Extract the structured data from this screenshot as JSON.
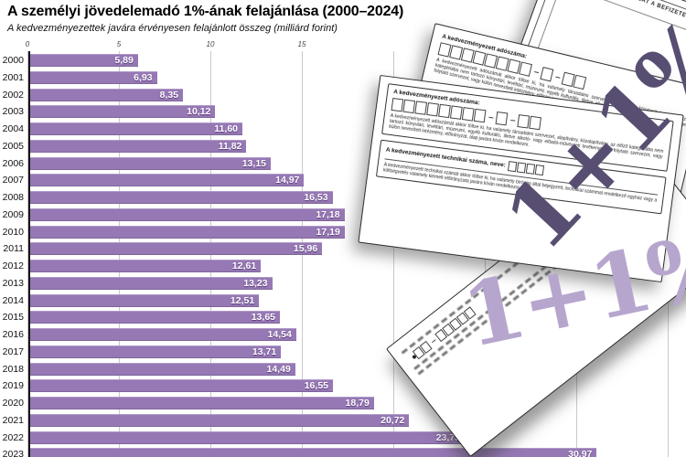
{
  "chart_data": {
    "type": "bar",
    "orientation": "horizontal",
    "title": "A személyi jövedelemadó 1%-ának felajánlása (2000–2024)",
    "subtitle": "A kedvezményezettek javára érvényesen felajánlott összeg (milliárd forint)",
    "unit": "milliárd forint",
    "categories": [
      "2000",
      "2001",
      "2002",
      "2003",
      "2004",
      "2005",
      "2006",
      "2007",
      "2008",
      "2009",
      "2010",
      "2011",
      "2012",
      "2013",
      "2014",
      "2015",
      "2016",
      "2017",
      "2018",
      "2019",
      "2020",
      "2021",
      "2022",
      "2023"
    ],
    "values": [
      5.89,
      6.93,
      8.35,
      10.12,
      11.6,
      11.82,
      13.15,
      14.97,
      16.53,
      17.18,
      17.19,
      15.96,
      12.61,
      13.23,
      12.51,
      13.65,
      14.54,
      13.71,
      14.49,
      16.55,
      18.79,
      20.72,
      23.75,
      30.97
    ],
    "value_labels": [
      "5,89",
      "6,93",
      "8,35",
      "10,12",
      "11,60",
      "11,82",
      "13,15",
      "14,97",
      "16,53",
      "17,18",
      "17,19",
      "15,96",
      "12,61",
      "13,23",
      "12,51",
      "13,65",
      "14,54",
      "13,71",
      "14,49",
      "16,55",
      "18,79",
      "20,72",
      "23,75",
      "30,97"
    ],
    "x_ticks": [
      0,
      5,
      10,
      15,
      20,
      25,
      30,
      35
    ],
    "x_tick_labels_visible": [
      "0",
      "5",
      "10",
      "15"
    ],
    "xlim": [
      0,
      36
    ],
    "grid": "vertical",
    "bar_color": "#9678b5",
    "axis_color": "#151515",
    "note": "2023 row partially cut off at bottom edge; 2024 outside visible area"
  },
  "forms": {
    "watermark_text": "1+1%",
    "watermark_dark_color": "#584e71",
    "watermark_light_color": "#b6a6ce",
    "top_form": {
      "header": "RENDELKEZŐ NYILATKOZAT A BEFIZETETT ADÓ EGY SZÁZALÉKÁRÓL"
    },
    "back_form": {
      "field_label": "A kedvezményezett adószáma:"
    },
    "main_form": {
      "field1_label": "A kedvezményezett adószáma:",
      "field1_note": "A kedvezményezett adószámát akkor töltse ki, ha valamely társadalmi szervezet, alapítvány, közalapítvány, az előző kategóriába nem tartozó könyvtári, levéltári, múzeumi, egyéb kulturális, illetve alkotó- vagy előadó-művészeti tevékenységet folytató szervezet, vagy külön nevesített intézmény, előirányzat, alap javára kíván rendelkezni.",
      "field2_label": "A kedvezményezett technikai száma, neve:",
      "field2_note": "A kedvezményezett technikai számát akkor töltse ki, ha valamely bíróság által bejegyzett, technikai számmal rendelkező egyház vagy a költségvetés valamely kiemelt előirányzata javára kíván rendelkezni."
    }
  }
}
